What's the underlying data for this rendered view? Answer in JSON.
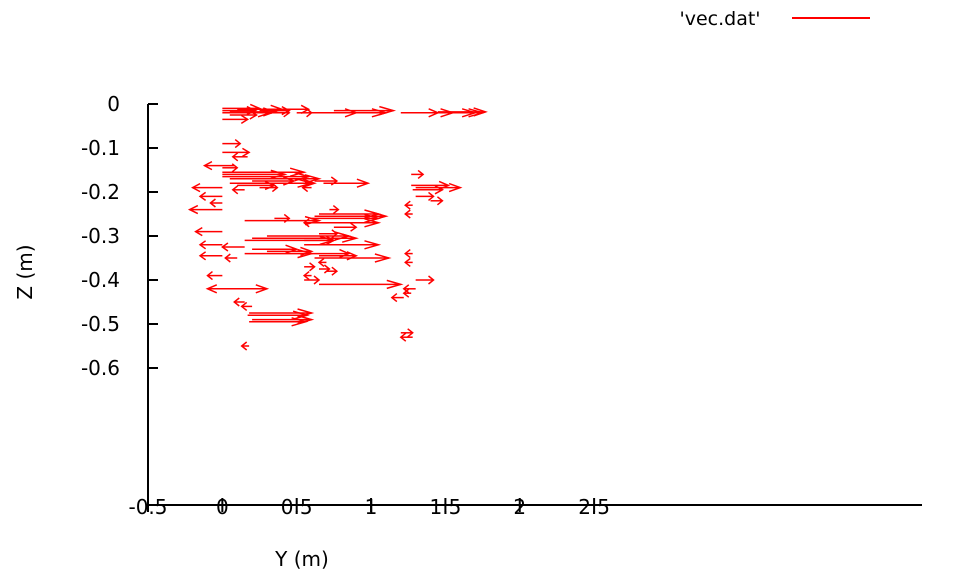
{
  "chart_data": {
    "type": "vector",
    "xlabel": "Y (m)",
    "ylabel": "Z (m)",
    "xlim": [
      -0.5,
      2.5
    ],
    "ylim": [
      -0.6,
      0
    ],
    "x_ticks": [
      "-0.5",
      "0",
      "0.5",
      "1",
      "1.5",
      "2",
      "2.5"
    ],
    "y_ticks": [
      "0",
      "-0.1",
      "-0.2",
      "-0.3",
      "-0.4",
      "-0.5",
      "-0.6"
    ],
    "grid": false,
    "legend_position": "top-right",
    "series": [
      {
        "name": "'vec.dat'",
        "color": "#ff0000",
        "vectors": [
          {
            "x": 0.0,
            "y": -0.01,
            "dx": 0.25,
            "dy": 0
          },
          {
            "x": 0.0,
            "y": -0.015,
            "dx": 0.22,
            "dy": 0
          },
          {
            "x": 0.0,
            "y": -0.02,
            "dx": 0.32,
            "dy": 0
          },
          {
            "x": 0.05,
            "y": -0.025,
            "dx": 0.18,
            "dy": 0
          },
          {
            "x": 0.05,
            "y": -0.018,
            "dx": 0.3,
            "dy": 0
          },
          {
            "x": 0.1,
            "y": -0.012,
            "dx": 0.3,
            "dy": 0
          },
          {
            "x": 0.25,
            "y": -0.015,
            "dx": 0.2,
            "dy": 0
          },
          {
            "x": 0.3,
            "y": -0.02,
            "dx": 0.15,
            "dy": 0
          },
          {
            "x": 0.38,
            "y": -0.012,
            "dx": 0.2,
            "dy": 0
          },
          {
            "x": 0.5,
            "y": -0.02,
            "dx": 0.1,
            "dy": 0
          },
          {
            "x": 0.6,
            "y": -0.02,
            "dx": 0.3,
            "dy": 0
          },
          {
            "x": 0.65,
            "y": -0.02,
            "dx": 0.45,
            "dy": 0
          },
          {
            "x": 0.75,
            "y": -0.015,
            "dx": 0.4,
            "dy": 0
          },
          {
            "x": 1.2,
            "y": -0.02,
            "dx": 0.25,
            "dy": 0
          },
          {
            "x": 1.22,
            "y": -0.02,
            "dx": 0.33,
            "dy": 0
          },
          {
            "x": 1.25,
            "y": -0.02,
            "dx": 0.5,
            "dy": 0
          },
          {
            "x": 1.45,
            "y": -0.018,
            "dx": 0.32,
            "dy": 0
          },
          {
            "x": 1.35,
            "y": -0.02,
            "dx": 0.35,
            "dy": 0
          },
          {
            "x": 0.0,
            "y": -0.035,
            "dx": 0.17,
            "dy": 0
          },
          {
            "x": 0.0,
            "y": -0.09,
            "dx": 0.12,
            "dy": 0
          },
          {
            "x": 0.17,
            "y": -0.12,
            "dx": -0.1,
            "dy": 0
          },
          {
            "x": 0.0,
            "y": -0.11,
            "dx": 0.18,
            "dy": 0
          },
          {
            "x": 0.08,
            "y": -0.14,
            "dx": -0.2,
            "dy": 0
          },
          {
            "x": 0.0,
            "y": -0.145,
            "dx": 0.1,
            "dy": 0
          },
          {
            "x": 0.0,
            "y": -0.155,
            "dx": 0.55,
            "dy": 0
          },
          {
            "x": 0.0,
            "y": -0.16,
            "dx": 0.42,
            "dy": 0
          },
          {
            "x": 0.0,
            "y": -0.165,
            "dx": 0.58,
            "dy": 0
          },
          {
            "x": 0.05,
            "y": -0.17,
            "dx": 0.6,
            "dy": 0
          },
          {
            "x": 0.2,
            "y": -0.175,
            "dx": 0.28,
            "dy": 0
          },
          {
            "x": 0.05,
            "y": -0.18,
            "dx": 0.55,
            "dy": 0
          },
          {
            "x": 0.1,
            "y": -0.185,
            "dx": 0.25,
            "dy": 0
          },
          {
            "x": 0.3,
            "y": -0.18,
            "dx": 0.32,
            "dy": 0
          },
          {
            "x": 0.62,
            "y": -0.175,
            "dx": 0.15,
            "dy": 0
          },
          {
            "x": 0.68,
            "y": -0.18,
            "dx": 0.3,
            "dy": 0
          },
          {
            "x": 0.25,
            "y": -0.19,
            "dx": 0.12,
            "dy": 0
          },
          {
            "x": 0.0,
            "y": -0.19,
            "dx": -0.2,
            "dy": 0
          },
          {
            "x": 0.15,
            "y": -0.195,
            "dx": -0.08,
            "dy": 0
          },
          {
            "x": 0.6,
            "y": -0.19,
            "dx": -0.06,
            "dy": 0
          },
          {
            "x": 0.0,
            "y": -0.21,
            "dx": -0.15,
            "dy": 0
          },
          {
            "x": 0.0,
            "y": -0.225,
            "dx": -0.08,
            "dy": 0
          },
          {
            "x": 0.0,
            "y": -0.24,
            "dx": -0.22,
            "dy": 0
          },
          {
            "x": 1.27,
            "y": -0.16,
            "dx": 0.08,
            "dy": 0
          },
          {
            "x": 1.27,
            "y": -0.185,
            "dx": 0.25,
            "dy": 0
          },
          {
            "x": 1.3,
            "y": -0.19,
            "dx": 0.3,
            "dy": 0
          },
          {
            "x": 1.28,
            "y": -0.195,
            "dx": 0.2,
            "dy": 0
          },
          {
            "x": 1.3,
            "y": -0.21,
            "dx": 0.12,
            "dy": 0
          },
          {
            "x": 1.4,
            "y": -0.22,
            "dx": 0.08,
            "dy": 0
          },
          {
            "x": 1.28,
            "y": -0.23,
            "dx": -0.05,
            "dy": 0
          },
          {
            "x": 1.28,
            "y": -0.25,
            "dx": -0.05,
            "dy": 0
          },
          {
            "x": 0.15,
            "y": -0.265,
            "dx": 0.5,
            "dy": 0
          },
          {
            "x": 0.35,
            "y": -0.26,
            "dx": 0.1,
            "dy": 0
          },
          {
            "x": 0.55,
            "y": -0.27,
            "dx": 0.5,
            "dy": 0
          },
          {
            "x": 0.6,
            "y": -0.26,
            "dx": 0.45,
            "dy": 0
          },
          {
            "x": 0.62,
            "y": -0.255,
            "dx": 0.48,
            "dy": 0
          },
          {
            "x": 0.65,
            "y": -0.25,
            "dx": 0.4,
            "dy": 0
          },
          {
            "x": 0.72,
            "y": -0.24,
            "dx": 0.06,
            "dy": 0
          },
          {
            "x": 0.6,
            "y": -0.27,
            "dx": -0.05,
            "dy": 0
          },
          {
            "x": 0.75,
            "y": -0.28,
            "dx": 0.15,
            "dy": 0
          },
          {
            "x": 0.0,
            "y": -0.29,
            "dx": -0.18,
            "dy": 0
          },
          {
            "x": 0.15,
            "y": -0.31,
            "dx": 0.6,
            "dy": 0
          },
          {
            "x": 0.2,
            "y": -0.305,
            "dx": 0.7,
            "dy": 0
          },
          {
            "x": 0.3,
            "y": -0.3,
            "dx": 0.55,
            "dy": 0
          },
          {
            "x": 0.55,
            "y": -0.31,
            "dx": 0.2,
            "dy": 0
          },
          {
            "x": 0.65,
            "y": -0.295,
            "dx": 0.12,
            "dy": 0
          },
          {
            "x": 0.55,
            "y": -0.32,
            "dx": 0.5,
            "dy": 0
          },
          {
            "x": 0.0,
            "y": -0.32,
            "dx": -0.15,
            "dy": 0
          },
          {
            "x": 0.15,
            "y": -0.325,
            "dx": -0.15,
            "dy": 0
          },
          {
            "x": 0.2,
            "y": -0.33,
            "dx": 0.3,
            "dy": 0
          },
          {
            "x": 0.3,
            "y": -0.335,
            "dx": 0.3,
            "dy": 0
          },
          {
            "x": 0.15,
            "y": -0.34,
            "dx": 0.45,
            "dy": 0
          },
          {
            "x": 0.0,
            "y": -0.345,
            "dx": -0.15,
            "dy": 0
          },
          {
            "x": 0.6,
            "y": -0.34,
            "dx": 0.25,
            "dy": 0
          },
          {
            "x": 0.65,
            "y": -0.345,
            "dx": 0.25,
            "dy": 0
          },
          {
            "x": 0.62,
            "y": -0.35,
            "dx": 0.5,
            "dy": 0
          },
          {
            "x": 0.7,
            "y": -0.36,
            "dx": -0.05,
            "dy": 0
          },
          {
            "x": 0.1,
            "y": -0.35,
            "dx": -0.08,
            "dy": 0
          },
          {
            "x": 1.28,
            "y": -0.34,
            "dx": -0.05,
            "dy": 0
          },
          {
            "x": 1.28,
            "y": -0.36,
            "dx": -0.05,
            "dy": 0
          },
          {
            "x": 0.55,
            "y": -0.37,
            "dx": 0.07,
            "dy": 0
          },
          {
            "x": 0.65,
            "y": -0.375,
            "dx": 0.07,
            "dy": 0
          },
          {
            "x": 0.7,
            "y": -0.38,
            "dx": 0.07,
            "dy": 0
          },
          {
            "x": 0.0,
            "y": -0.39,
            "dx": -0.1,
            "dy": 0
          },
          {
            "x": 0.6,
            "y": -0.39,
            "dx": -0.05,
            "dy": 0
          },
          {
            "x": 0.55,
            "y": -0.4,
            "dx": 0.1,
            "dy": 0
          },
          {
            "x": 0.65,
            "y": -0.41,
            "dx": 0.55,
            "dy": 0
          },
          {
            "x": 1.3,
            "y": -0.4,
            "dx": 0.12,
            "dy": 0
          },
          {
            "x": 0.0,
            "y": -0.42,
            "dx": 0.3,
            "dy": 0
          },
          {
            "x": 0.15,
            "y": -0.42,
            "dx": -0.25,
            "dy": 0
          },
          {
            "x": 1.3,
            "y": -0.42,
            "dx": -0.08,
            "dy": 0
          },
          {
            "x": 1.27,
            "y": -0.43,
            "dx": -0.05,
            "dy": 0
          },
          {
            "x": 1.22,
            "y": -0.44,
            "dx": -0.08,
            "dy": 0
          },
          {
            "x": 0.15,
            "y": -0.45,
            "dx": -0.07,
            "dy": 0
          },
          {
            "x": 0.2,
            "y": -0.46,
            "dx": -0.07,
            "dy": 0
          },
          {
            "x": 0.18,
            "y": -0.475,
            "dx": 0.42,
            "dy": 0
          },
          {
            "x": 0.17,
            "y": -0.48,
            "dx": 0.4,
            "dy": 0
          },
          {
            "x": 0.2,
            "y": -0.49,
            "dx": 0.4,
            "dy": 0
          },
          {
            "x": 0.18,
            "y": -0.495,
            "dx": 0.38,
            "dy": 0
          },
          {
            "x": 1.2,
            "y": -0.52,
            "dx": 0.08,
            "dy": 0
          },
          {
            "x": 1.28,
            "y": -0.53,
            "dx": -0.08,
            "dy": 0
          },
          {
            "x": 0.18,
            "y": -0.55,
            "dx": -0.05,
            "dy": 0
          }
        ]
      }
    ]
  }
}
